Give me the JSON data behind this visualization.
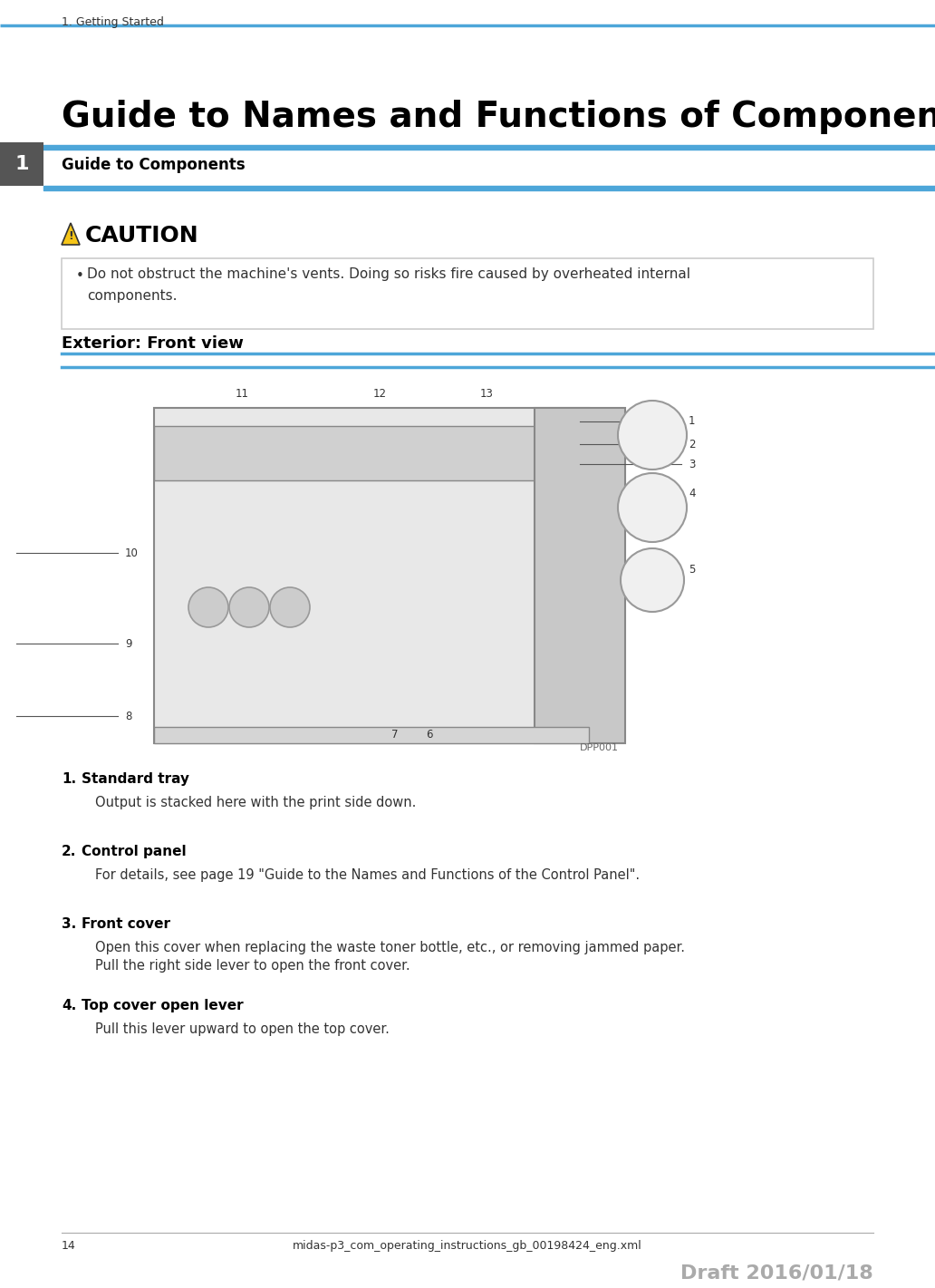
{
  "page_bg": "#ffffff",
  "header_text": "1. Getting Started",
  "header_color": "#333333",
  "header_fontsize": 9,
  "blue_line_color": "#4da6d9",
  "chapter_tab_color": "#555555",
  "chapter_tab_text": "1",
  "chapter_tab_text_color": "#ffffff",
  "section_heading": "Guide to Components",
  "section_heading_fontsize": 12,
  "section_heading_bold": true,
  "main_title": "Guide to Names and Functions of Components",
  "main_title_fontsize": 28,
  "main_title_bold": true,
  "caution_title": "CAUTION",
  "caution_title_fontsize": 18,
  "caution_title_color": "#000000",
  "caution_triangle_color": "#f5c518",
  "caution_text": "Do not obstruct the machine's vents. Doing so risks fire caused by overheated internal\ncomponents.",
  "caution_text_fontsize": 11,
  "caution_box_color": "#cccccc",
  "exterior_heading": "Exterior: Front view",
  "exterior_heading_fontsize": 13,
  "exterior_heading_bold": true,
  "diagram_label": "DPP001",
  "items": [
    {
      "num": "1.",
      "title": "Standard tray",
      "text": "Output is stacked here with the print side down."
    },
    {
      "num": "2.",
      "title": "Control panel",
      "text": "For details, see page 19 \"Guide to the Names and Functions of the Control Panel\"."
    },
    {
      "num": "3.",
      "title": "Front cover",
      "text": "Open this cover when replacing the waste toner bottle, etc., or removing jammed paper.\nPull the right side lever to open the front cover."
    },
    {
      "num": "4.",
      "title": "Top cover open lever",
      "text": "Pull this lever upward to open the top cover."
    }
  ],
  "footer_page": "14",
  "footer_filename": "midas-p3_com_operating_instructions_gb_00198424_eng.xml",
  "footer_draft": "Draft 2016/01/18",
  "footer_draft_color": "#aaaaaa",
  "footer_fontsize": 9
}
